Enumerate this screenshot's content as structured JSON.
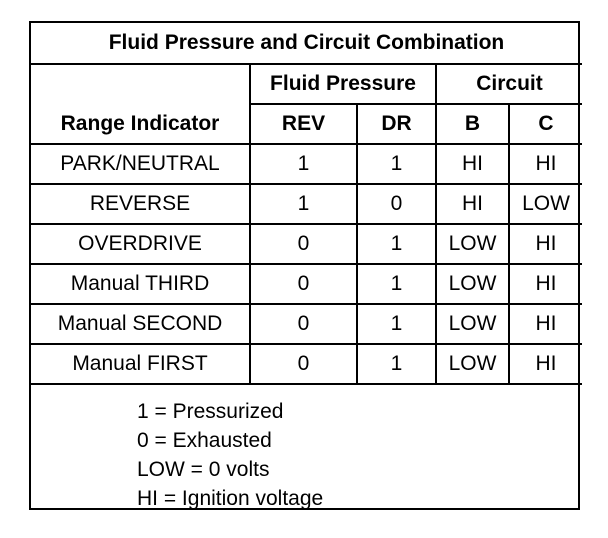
{
  "table": {
    "title": "Fluid Pressure and Circuit Combination",
    "group_headers": {
      "fluid_pressure": "Fluid Pressure",
      "circuit": "Circuit"
    },
    "range_header": "Range Indicator",
    "columns": [
      "REV",
      "DR",
      "B",
      "C"
    ],
    "rows": [
      {
        "range": "PARK/NEUTRAL",
        "rev": "1",
        "dr": "1",
        "b": "HI",
        "c": "HI"
      },
      {
        "range": "REVERSE",
        "rev": "1",
        "dr": "0",
        "b": "HI",
        "c": "LOW"
      },
      {
        "range": "OVERDRIVE",
        "rev": "0",
        "dr": "1",
        "b": "LOW",
        "c": "HI"
      },
      {
        "range": "Manual THIRD",
        "rev": "0",
        "dr": "1",
        "b": "LOW",
        "c": "HI"
      },
      {
        "range": "Manual SECOND",
        "rev": "0",
        "dr": "1",
        "b": "LOW",
        "c": "HI"
      },
      {
        "range": "Manual FIRST",
        "rev": "0",
        "dr": "1",
        "b": "LOW",
        "c": "HI"
      }
    ]
  },
  "legend": [
    "1 = Pressurized",
    "0 = Exhausted",
    "LOW = 0 volts",
    "HI = Ignition voltage"
  ]
}
